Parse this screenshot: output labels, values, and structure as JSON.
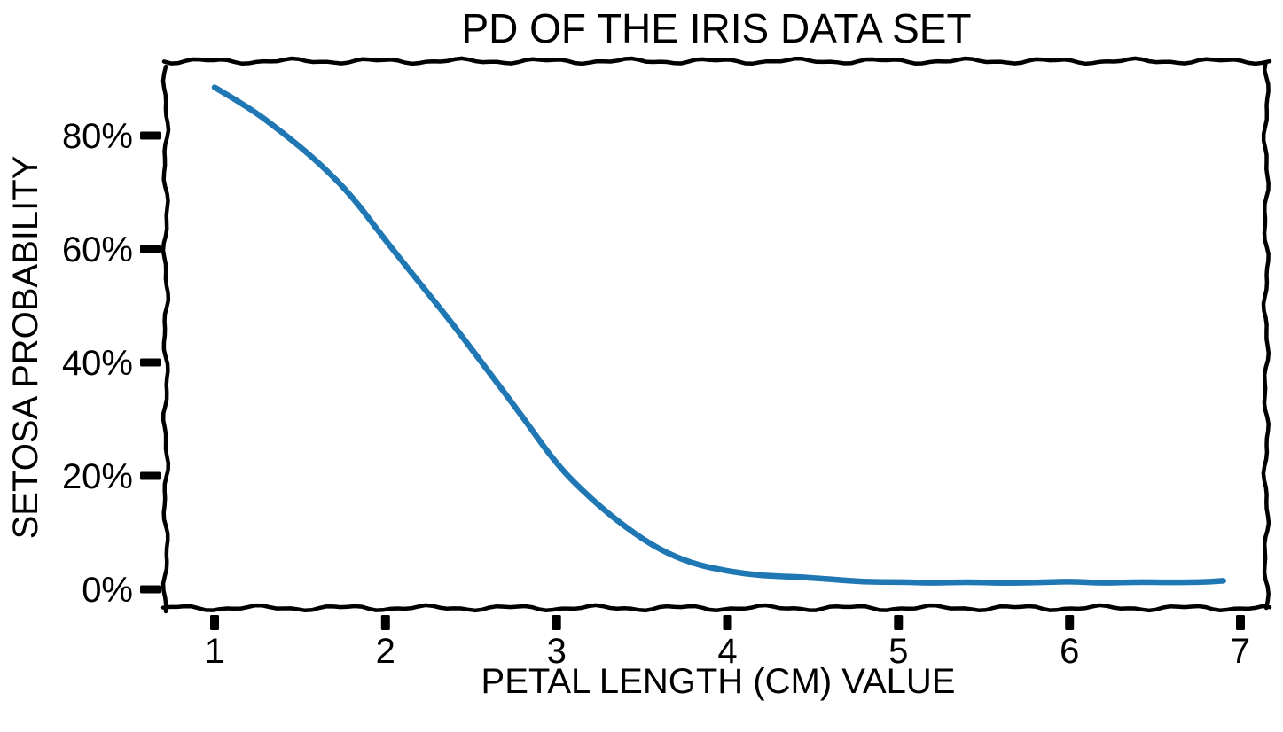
{
  "figure": {
    "background_color": "#ffffff",
    "text_color": "#000000",
    "axis_color": "#000000"
  },
  "chart_data": {
    "type": "line",
    "style": "xkcd-hand-drawn",
    "title": "PD OF THE IRIS DATA SET",
    "xlabel": "PETAL LENGTH (CM) VALUE",
    "ylabel": "SETOSA PROBABILITY",
    "x_tick_labels": [
      "1",
      "2",
      "3",
      "4",
      "5",
      "6",
      "7"
    ],
    "x_tick_values": [
      1,
      2,
      3,
      4,
      5,
      6,
      7
    ],
    "y_tick_labels": [
      "0%",
      "20%",
      "40%",
      "60%",
      "80%"
    ],
    "y_tick_values": [
      0,
      20,
      40,
      60,
      80
    ],
    "xlim": [
      0.71,
      7.15
    ],
    "ylim_percent": [
      -3.3,
      93
    ],
    "grid": false,
    "legend_position": "none",
    "line_color": "#1f77b4",
    "series": [
      {
        "name": "setosa probability",
        "x": [
          1.0,
          1.2,
          1.4,
          1.6,
          1.8,
          2.0,
          2.2,
          2.4,
          2.6,
          2.8,
          3.0,
          3.2,
          3.4,
          3.6,
          3.8,
          4.0,
          4.2,
          4.4,
          4.6,
          4.8,
          5.0,
          5.2,
          5.4,
          5.6,
          5.8,
          6.0,
          6.2,
          6.4,
          6.6,
          6.8,
          6.9
        ],
        "y_percent": [
          88.5,
          85.0,
          80.5,
          75.5,
          69.5,
          61.5,
          54.0,
          46.5,
          38.5,
          30.5,
          22.0,
          16.0,
          11.0,
          7.0,
          4.5,
          3.2,
          2.4,
          2.2,
          1.8,
          1.3,
          1.3,
          1.1,
          1.3,
          1.1,
          1.2,
          1.4,
          1.1,
          1.3,
          1.2,
          1.3,
          1.5
        ]
      }
    ]
  }
}
